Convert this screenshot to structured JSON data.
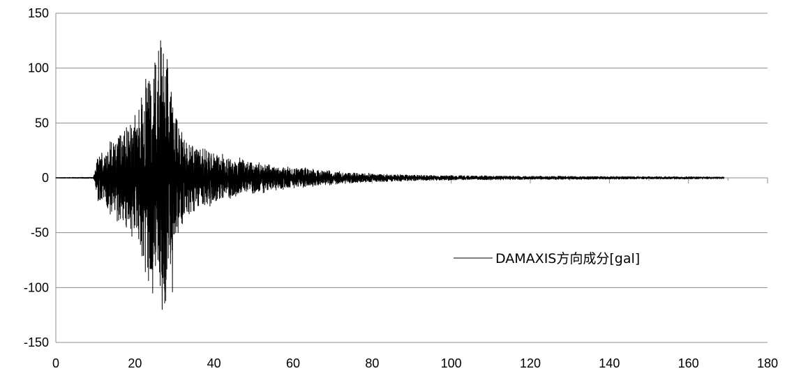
{
  "chart_data": {
    "type": "line",
    "title": "",
    "xlabel": "",
    "ylabel": "",
    "xlim": [
      0,
      180
    ],
    "ylim": [
      -150,
      150
    ],
    "x_ticks": [
      0,
      20,
      40,
      60,
      80,
      100,
      120,
      140,
      160,
      180
    ],
    "y_ticks": [
      150,
      100,
      50,
      0,
      -50,
      -100,
      -150
    ],
    "x_tick_labels": [
      "0",
      "20",
      "40",
      "60",
      "80",
      "100",
      "120",
      "140",
      "160",
      "180"
    ],
    "y_tick_labels": [
      "150",
      "100",
      "50",
      "0",
      "-50",
      "-100",
      "-150"
    ],
    "grid": "horizontal",
    "legend_position": "right-middle",
    "series": [
      {
        "name": "DAMAXIS方向成分[gal]",
        "color": "#000000",
        "x_range": [
          0,
          169
        ],
        "onset": 9.5,
        "envelope": [
          [
            0,
            0.3
          ],
          [
            9.5,
            0.5
          ],
          [
            10.5,
            18
          ],
          [
            13,
            28
          ],
          [
            15,
            35
          ],
          [
            17,
            42
          ],
          [
            19,
            48
          ],
          [
            21,
            58
          ],
          [
            22.5,
            85
          ],
          [
            24,
            95
          ],
          [
            25.5,
            100
          ],
          [
            26.5,
            120
          ],
          [
            27.3,
            112
          ],
          [
            28.5,
            95
          ],
          [
            30,
            55
          ],
          [
            32,
            40
          ],
          [
            35,
            30
          ],
          [
            40,
            22
          ],
          [
            45,
            17
          ],
          [
            50,
            14
          ],
          [
            55,
            11
          ],
          [
            60,
            9
          ],
          [
            65,
            8
          ],
          [
            70,
            6
          ],
          [
            80,
            3.5
          ],
          [
            90,
            2.5
          ],
          [
            100,
            2
          ],
          [
            120,
            1.5
          ],
          [
            140,
            1.2
          ],
          [
            160,
            1
          ],
          [
            169,
            0.8
          ]
        ],
        "peaks": [
          {
            "x": 26.5,
            "y": 125
          },
          {
            "x": 27.2,
            "y": 113
          },
          {
            "x": 28.3,
            "y": 100
          },
          {
            "x": 26.9,
            "y": -120
          },
          {
            "x": 27.8,
            "y": -112
          },
          {
            "x": 24.5,
            "y": -105
          },
          {
            "x": 29.5,
            "y": -104
          },
          {
            "x": 23.6,
            "y": 88
          },
          {
            "x": 24.8,
            "y": 90
          }
        ]
      }
    ]
  }
}
